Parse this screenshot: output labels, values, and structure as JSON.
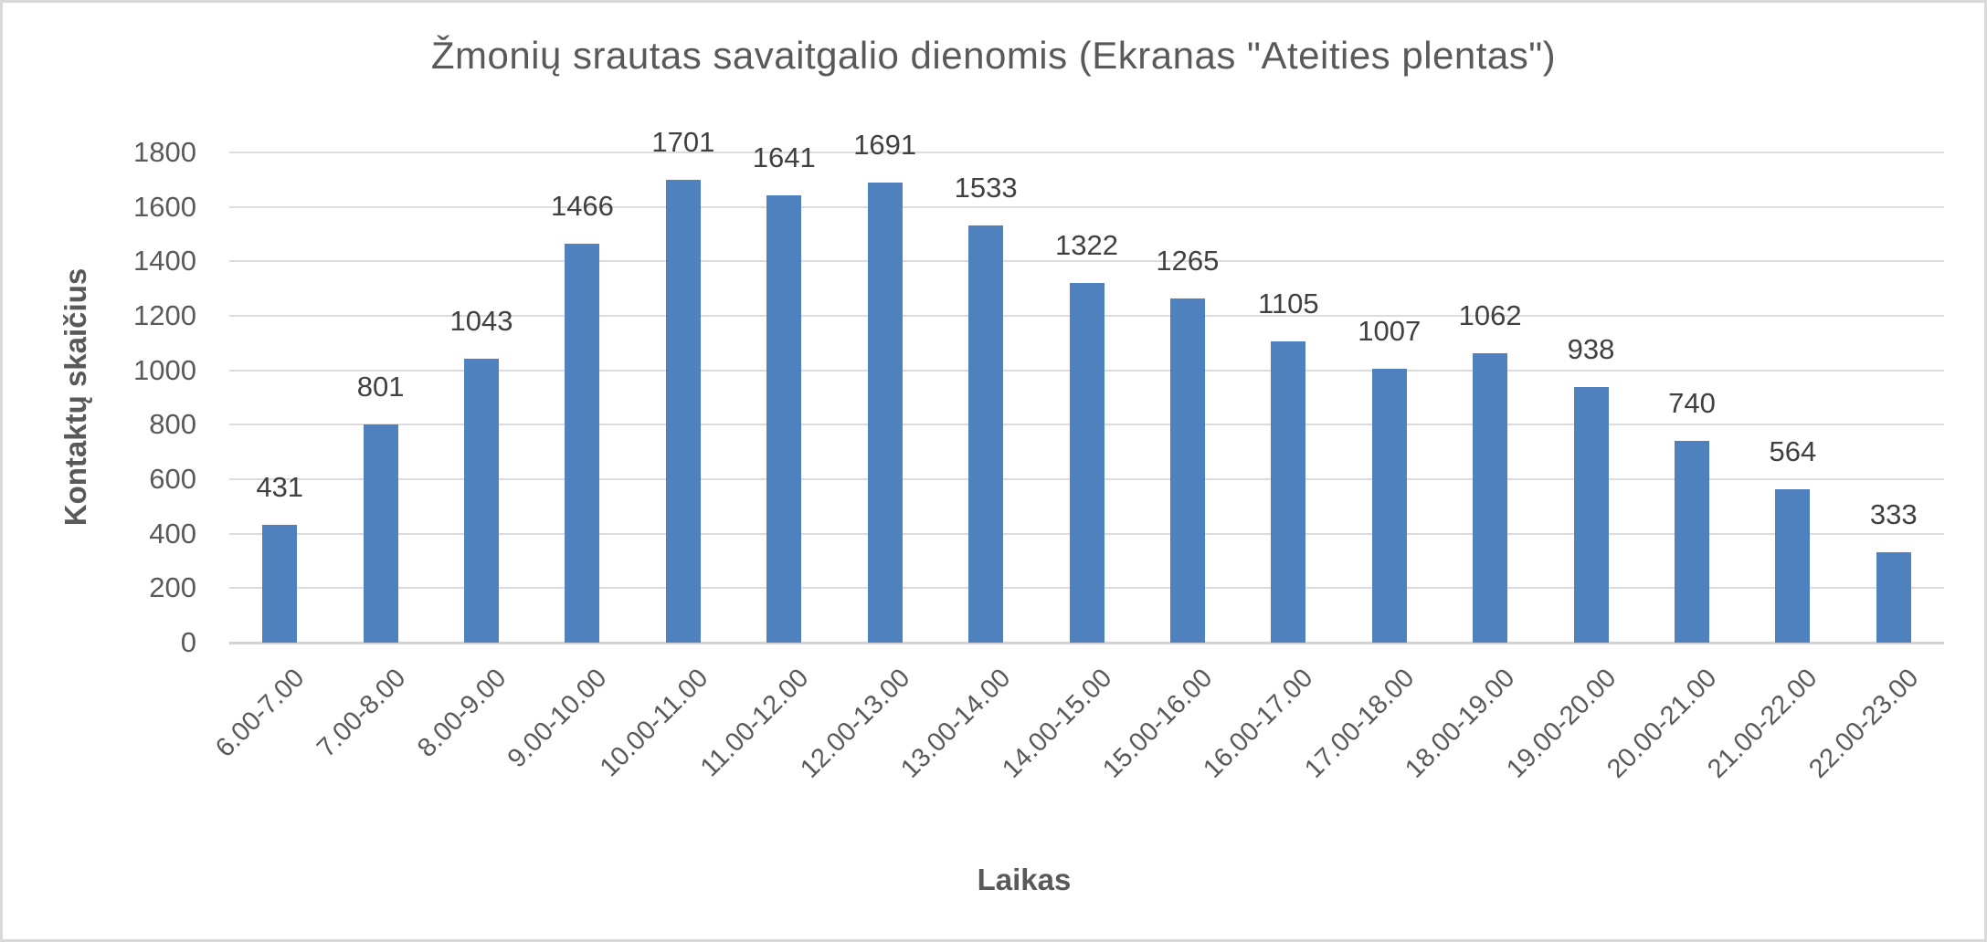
{
  "window": {
    "background": "#ffffff",
    "border_color": "#d9d9d9"
  },
  "chart_data": {
    "type": "bar",
    "title": "Žmonių srautas savaitgalio dienomis (Ekranas \"Ateities plentas\")",
    "xlabel": "Laikas",
    "ylabel": "Kontaktų skaičius",
    "categories": [
      "6.00-7.00",
      "7.00-8.00",
      "8.00-9.00",
      "9.00-10.00",
      "10.00-11.00",
      "11.00-12.00",
      "12.00-13.00",
      "13.00-14.00",
      "14.00-15.00",
      "15.00-16.00",
      "16.00-17.00",
      "17.00-18.00",
      "18.00-19.00",
      "19.00-20.00",
      "20.00-21.00",
      "21.00-22.00",
      "22.00-23.00"
    ],
    "values": [
      431,
      801,
      1043,
      1466,
      1701,
      1641,
      1691,
      1533,
      1322,
      1265,
      1105,
      1007,
      1062,
      938,
      740,
      564,
      333
    ],
    "ylim": [
      0,
      1800
    ],
    "yticks": [
      0,
      200,
      400,
      600,
      800,
      1000,
      1200,
      1400,
      1600,
      1800
    ],
    "grid": true,
    "legend": false,
    "data_labels": true,
    "colors": {
      "bar": "#4e81bd",
      "gridline": "#dcdcdc",
      "axis_line": "#d2d2d2",
      "title_text": "#595959",
      "tick_text": "#595959",
      "data_label_text": "#404040"
    }
  }
}
